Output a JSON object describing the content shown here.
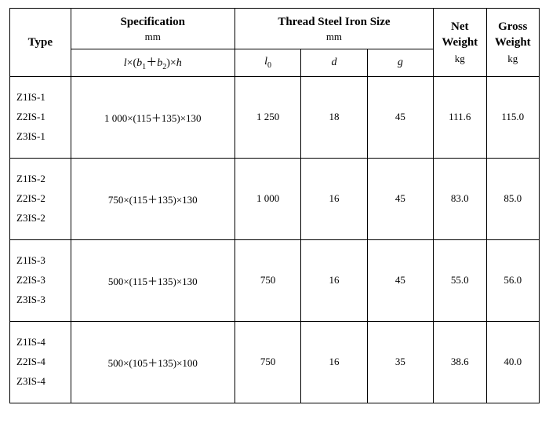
{
  "table": {
    "background_color": "#ffffff",
    "border_color": "#000000",
    "text_color": "#000000",
    "header": {
      "type": "Type",
      "specification": "Specification",
      "specification_unit": "mm",
      "thread": "Thread Steel Iron Size",
      "thread_unit": "mm",
      "net_weight": "Net Weight",
      "net_weight_unit": "kg",
      "gross_weight": "Gross Weight",
      "gross_weight_unit": "kg",
      "formula_l": "l",
      "formula_times1": "×(",
      "formula_b1": "b",
      "formula_b1_sub": "1",
      "formula_plus": "＋",
      "formula_b2": "b",
      "formula_b2_sub": "2",
      "formula_times2": ")×",
      "formula_h": "h",
      "l0_sym": "l",
      "l0_sub": "0",
      "d_sym": "d",
      "g_sym": "g"
    },
    "rows": [
      {
        "types": [
          "Z1IS-1",
          "Z2IS-1",
          "Z3IS-1"
        ],
        "spec": "1 000×(115＋135)×130",
        "l0": "1 250",
        "d": "18",
        "g": "45",
        "net_weight": "111.6",
        "gross_weight": "115.0"
      },
      {
        "types": [
          "Z1IS-2",
          "Z2IS-2",
          "Z3IS-2"
        ],
        "spec": "750×(115＋135)×130",
        "l0": "1 000",
        "d": "16",
        "g": "45",
        "net_weight": "83.0",
        "gross_weight": "85.0"
      },
      {
        "types": [
          "Z1IS-3",
          "Z2IS-3",
          "Z3IS-3"
        ],
        "spec": "500×(115＋135)×130",
        "l0": "750",
        "d": "16",
        "g": "45",
        "net_weight": "55.0",
        "gross_weight": "56.0"
      },
      {
        "types": [
          "Z1IS-4",
          "Z2IS-4",
          "Z3IS-4"
        ],
        "spec": "500×(105＋135)×100",
        "l0": "750",
        "d": "16",
        "g": "35",
        "net_weight": "38.6",
        "gross_weight": "40.0"
      }
    ],
    "columns": [
      "type",
      "spec",
      "l0",
      "d",
      "g",
      "net_weight",
      "gross_weight"
    ],
    "col_widths_pct": [
      11.5,
      31,
      12.5,
      12.5,
      12.5,
      10,
      10
    ],
    "font_family": "Times New Roman",
    "header_fontsize_pt": 15,
    "body_fontsize_pt": 13
  }
}
